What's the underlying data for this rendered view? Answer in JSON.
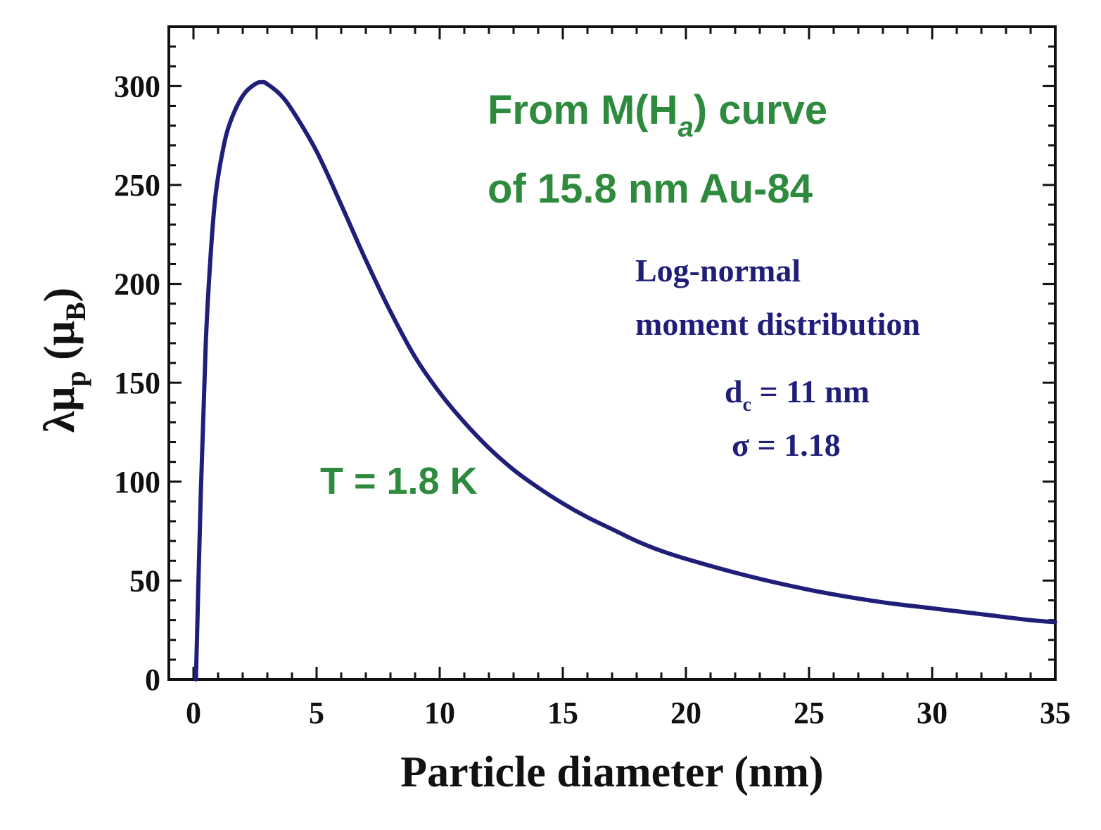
{
  "chart_data": {
    "type": "line",
    "xlabel": "Particle diameter (nm)",
    "ylabel": {
      "main": "λμ",
      "sub1": "p",
      "paren_open": " (μ",
      "sub2": "B",
      "paren_close": ")"
    },
    "xlim": [
      -1,
      35
    ],
    "ylim": [
      0,
      330
    ],
    "xticks": [
      0,
      5,
      10,
      15,
      20,
      25,
      30,
      35
    ],
    "yticks": [
      0,
      50,
      100,
      150,
      200,
      250,
      300
    ],
    "grid": false,
    "series": [
      {
        "name": "Log-normal moment distribution",
        "color": "#1f1f7a",
        "x": [
          0.1,
          0.3,
          0.5,
          0.7,
          0.9,
          1.2,
          1.5,
          2.0,
          2.5,
          2.8,
          3.0,
          3.5,
          4.0,
          5.0,
          6.0,
          7.0,
          8.0,
          9.0,
          10.0,
          11.0,
          12.0,
          13.0,
          14.0,
          15.0,
          16.0,
          17.0,
          18.0,
          19.0,
          20.0,
          22.0,
          24.0,
          26.0,
          28.0,
          30.0,
          32.0,
          34.0,
          35.0
        ],
        "y": [
          0,
          95,
          170,
          215,
          245,
          268,
          282,
          295,
          301,
          302,
          301,
          296,
          288,
          267,
          240,
          212,
          186,
          163,
          145,
          130,
          117,
          106,
          97,
          89,
          82,
          76,
          70,
          65,
          61,
          54,
          48,
          43,
          39,
          36,
          33,
          30,
          29
        ]
      }
    ],
    "annotations": {
      "title_line1_a": "From M(H",
      "title_line1_sub": "a",
      "title_line1_b": ") curve",
      "title_line2": "of 15.8 nm Au-84",
      "dist_line1": "Log-normal",
      "dist_line2": "moment distribution",
      "dc_label": "d",
      "dc_sub": "c",
      "dc_value": " = 11 nm",
      "sigma": "σ = 1.18",
      "temperature": "T = 1.8 K"
    },
    "colors": {
      "curve": "#1f1f7a",
      "green_text": "#2e8b3e",
      "navy_text": "#1f1f7a",
      "axes": "#111111"
    }
  }
}
